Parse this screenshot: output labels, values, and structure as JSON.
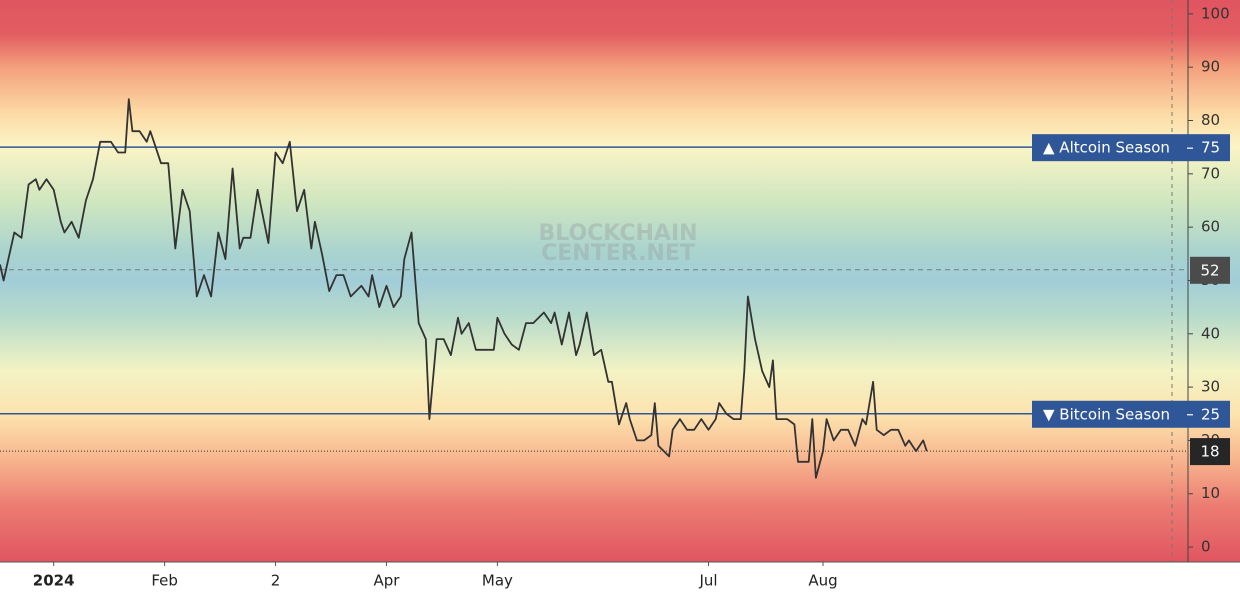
{
  "chart_data": {
    "type": "line",
    "x": [
      0,
      1,
      4,
      6,
      8,
      10,
      11,
      13,
      15,
      17,
      18,
      20,
      22,
      24,
      26,
      28,
      31,
      33,
      35,
      36,
      37,
      39,
      41,
      42,
      43,
      45,
      47,
      49,
      51,
      53,
      55,
      57,
      59,
      61,
      63,
      65,
      67,
      68,
      70,
      72,
      75,
      77,
      79,
      81,
      83,
      85,
      87,
      88,
      90,
      92,
      94,
      96,
      98,
      101,
      103,
      104,
      106,
      108,
      110,
      112,
      113,
      115,
      117,
      119,
      120,
      122,
      124,
      126,
      128,
      129,
      131,
      133,
      135,
      138,
      139,
      141,
      143,
      145,
      147,
      149,
      152,
      154,
      155,
      157,
      159,
      161,
      162,
      164,
      166,
      168,
      170,
      171,
      173,
      175,
      176,
      178,
      180,
      182,
      183,
      184,
      187,
      188,
      190,
      192,
      194,
      196,
      198,
      200,
      201,
      203,
      205,
      207,
      208,
      209,
      211,
      213,
      215,
      216,
      217,
      220,
      222,
      223,
      226,
      227,
      228,
      230,
      231,
      233,
      235,
      237,
      239,
      241,
      242,
      244,
      245,
      247,
      249,
      251,
      253,
      254,
      256,
      258,
      259
    ],
    "series": [
      {
        "color": "#333333",
        "values": [
          53,
          50,
          59,
          58,
          68,
          69,
          67,
          69,
          67,
          61,
          59,
          61,
          58,
          65,
          69,
          76,
          76,
          74,
          74,
          84,
          78,
          78,
          76,
          78,
          76,
          72,
          72,
          56,
          67,
          63,
          47,
          51,
          47,
          59,
          54,
          71,
          56,
          58,
          58,
          67,
          57,
          74,
          72,
          76,
          63,
          67,
          56,
          61,
          55,
          48,
          51,
          51,
          47,
          49,
          47,
          51,
          45,
          49,
          45,
          47,
          54,
          59,
          42,
          39,
          24,
          39,
          39,
          36,
          43,
          40,
          42,
          37,
          37,
          37,
          43,
          40,
          38,
          37,
          42,
          42,
          44,
          42,
          44,
          38,
          44,
          36,
          38,
          44,
          36,
          37,
          31,
          31,
          23,
          27,
          24,
          20,
          20,
          21,
          27,
          19,
          17,
          22,
          24,
          22,
          22,
          24,
          22,
          24,
          27,
          25,
          24,
          24,
          33,
          47,
          39,
          33,
          30,
          35,
          24,
          24,
          23,
          16,
          16,
          24,
          13,
          18,
          24,
          20,
          22,
          22,
          19,
          24,
          23,
          31,
          22,
          21,
          22,
          22,
          19,
          20,
          18,
          20,
          18
        ]
      }
    ],
    "xlim": [
      0,
      332
    ],
    "xticks": [
      {
        "value": 15,
        "label": "2024"
      },
      {
        "value": 46,
        "label": "Feb"
      },
      {
        "value": 77,
        "label": "2"
      },
      {
        "value": 108,
        "label": "Apr"
      },
      {
        "value": 139,
        "label": "May"
      },
      {
        "value": 198,
        "label": "Jul"
      },
      {
        "value": 230,
        "label": "Aug"
      }
    ],
    "ylim": [
      -2.8,
      102.6
    ],
    "yticks": [
      0,
      10,
      20,
      30,
      40,
      50,
      60,
      70,
      80,
      90,
      100
    ],
    "reference_lines": [
      {
        "label": "▲ Altcoin Season",
        "value": 75,
        "color": "#2f5797"
      },
      {
        "label": "▼ Bitcoin Season",
        "value": 25,
        "color": "#2f5797"
      }
    ],
    "dashed_line": {
      "value": 52,
      "color": "#4a4a4a"
    },
    "watermark": [
      "BLOCKCHAIN",
      "CENTER.NET"
    ]
  }
}
